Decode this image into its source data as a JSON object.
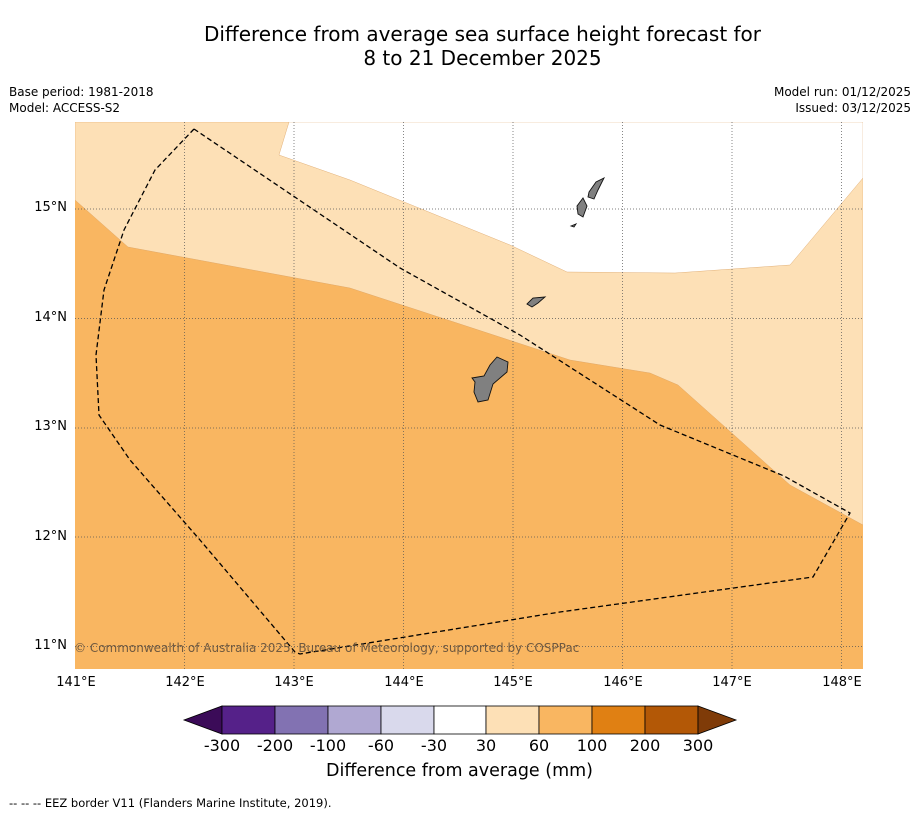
{
  "title": {
    "line1": "Difference from average sea surface height forecast for",
    "line2": "8 to 21 December 2025"
  },
  "info": {
    "base_period": "Base period: 1981-2018",
    "model": "Model: ACCESS-S2",
    "model_run": "Model run: 01/12/2025",
    "issued": "Issued: 03/12/2025"
  },
  "map": {
    "lat_labels": [
      "15°N",
      "14°N",
      "13°N",
      "12°N",
      "11°N"
    ],
    "lon_labels": [
      "141°E",
      "142°E",
      "143°E",
      "144°E",
      "145°E",
      "146°E",
      "147°E",
      "148°E"
    ],
    "lat_range": [
      10.8,
      15.8
    ],
    "lon_range": [
      141.0,
      148.2
    ],
    "copyright": "© Commonwealth of Australia 2025, Bureau of Meteorology, supported by COSPPac",
    "colors": {
      "band_30_60": "#fde0b6",
      "band_60_100": "#f9b661",
      "band_100_200": "#e08013",
      "land": "#808080"
    }
  },
  "colorbar": {
    "labels": [
      "-300",
      "-200",
      "-100",
      "-60",
      "-30",
      "30",
      "60",
      "100",
      "200",
      "300"
    ],
    "colors": [
      "#3b0b58",
      "#552189",
      "#8272b2",
      "#b0a8d2",
      "#d9d9ec",
      "#ffffff",
      "#fde0b6",
      "#f9b661",
      "#e08013",
      "#b35806",
      "#7f3b08"
    ],
    "title": "Difference from average (mm)"
  },
  "legend_note": "--  --  -- EEZ border V11 (Flanders Marine Institute, 2019)."
}
